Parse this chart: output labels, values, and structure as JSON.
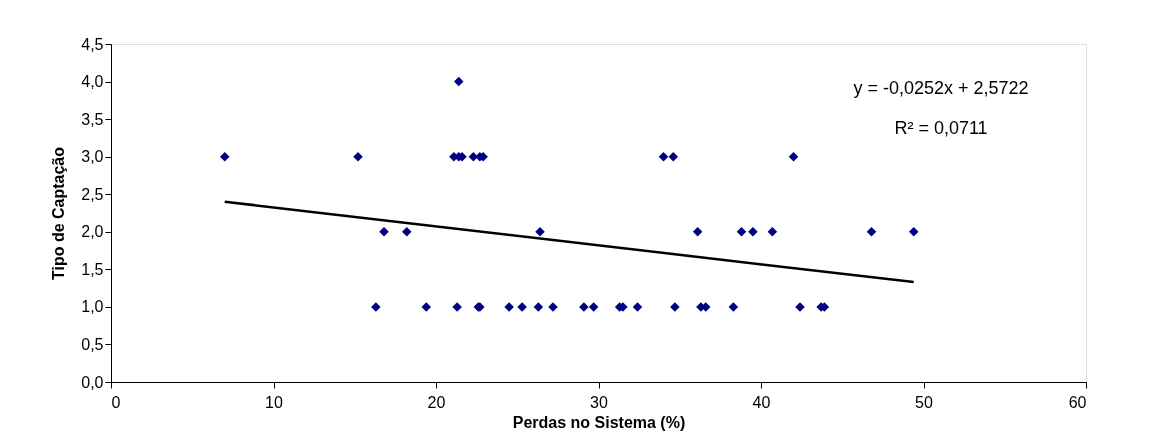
{
  "chart_data": {
    "type": "scatter",
    "xlabel": "Perdas no Sistema (%)",
    "ylabel": "Tipo de Captação",
    "marker": "diamond",
    "grid": false,
    "xlim": [
      0,
      60
    ],
    "xticks": [
      0,
      10,
      20,
      30,
      40,
      50,
      60
    ],
    "ylim": [
      0,
      4.5
    ],
    "yticks": [
      {
        "value": 0,
        "label": "0,0"
      },
      {
        "value": 0.5,
        "label": "0,5"
      },
      {
        "value": 1,
        "label": "1,0"
      },
      {
        "value": 1.5,
        "label": "1,5"
      },
      {
        "value": 2,
        "label": "2,0"
      },
      {
        "value": 2.5,
        "label": "2,5"
      },
      {
        "value": 3,
        "label": "3,0"
      },
      {
        "value": 3.5,
        "label": "3,5"
      },
      {
        "value": 4,
        "label": "4,0"
      },
      {
        "value": 4.5,
        "label": "4,5"
      }
    ],
    "annotations": [
      "y = -0,0252x + 2,5722",
      "R² = 0,0711"
    ],
    "series": [
      {
        "color": "#000080",
        "x": [
          7.0,
          15.2,
          21.1,
          21.4,
          21.6,
          22.3,
          22.7,
          22.9,
          34.0,
          34.6,
          42.0,
          21.4,
          16.8,
          18.2,
          26.4,
          36.1,
          38.8,
          39.5,
          40.7,
          46.8,
          49.4,
          16.3,
          19.4,
          21.3,
          22.6,
          22.7,
          24.5,
          25.3,
          26.3,
          27.2,
          29.1,
          29.7,
          31.3,
          31.5,
          32.4,
          34.7,
          36.3,
          36.6,
          38.3,
          42.4,
          43.7,
          43.9
        ],
        "values": [
          3,
          3,
          3,
          3,
          3,
          3,
          3,
          3,
          3,
          3,
          3,
          4,
          2,
          2,
          2,
          2,
          2,
          2,
          2,
          2,
          2,
          1,
          1,
          1,
          1,
          1,
          1,
          1,
          1,
          1,
          1,
          1,
          1,
          1,
          1,
          1,
          1,
          1,
          1,
          1,
          1,
          1
        ]
      },
      {
        "type": "line",
        "marker": "none",
        "line_style": "solid",
        "color": "#000000",
        "x": [
          7.0,
          49.4
        ],
        "values": [
          2.4,
          1.33
        ]
      }
    ]
  }
}
